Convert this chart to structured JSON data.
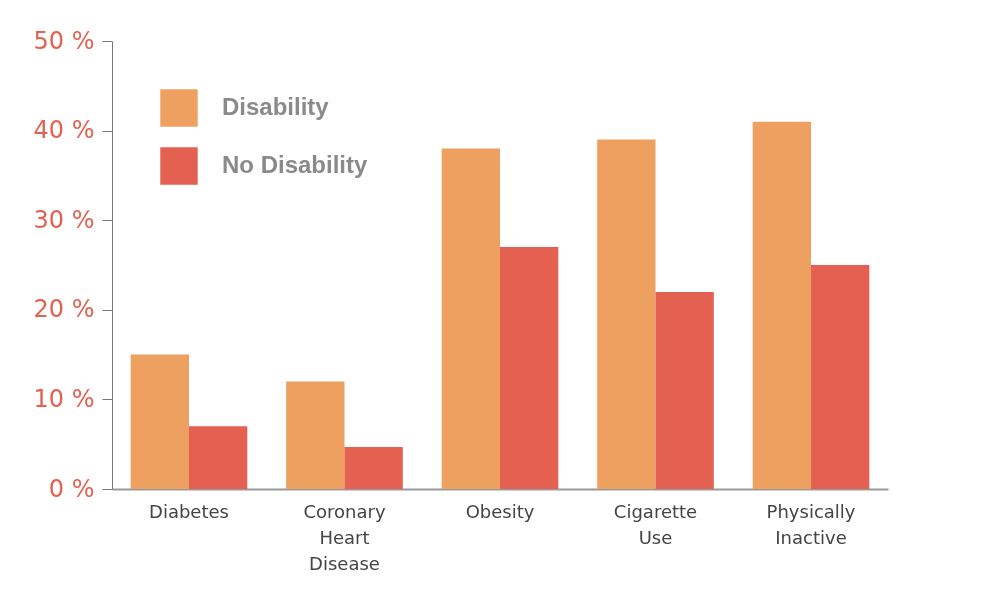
{
  "chart_data": {
    "type": "bar",
    "categories": [
      "Diabetes",
      "Coronary Heart Disease",
      "Obesity",
      "Cigarette Use",
      "Physically Inactive"
    ],
    "series": [
      {
        "name": "Disability",
        "color": "#eda060",
        "values": [
          15,
          12,
          38,
          39,
          41
        ]
      },
      {
        "name": "No Disability",
        "color": "#e46050",
        "values": [
          7,
          4.7,
          27,
          22,
          25
        ]
      }
    ],
    "ylim": [
      0,
      50
    ],
    "yticks": [
      {
        "value": 0,
        "label": "0 %"
      },
      {
        "value": 10,
        "label": "10 %"
      },
      {
        "value": 20,
        "label": "20 %"
      },
      {
        "value": 30,
        "label": "30 %"
      },
      {
        "value": 40,
        "label": "40 %"
      },
      {
        "value": 50,
        "label": "50 %"
      }
    ],
    "grid": false,
    "legend": "top left"
  }
}
